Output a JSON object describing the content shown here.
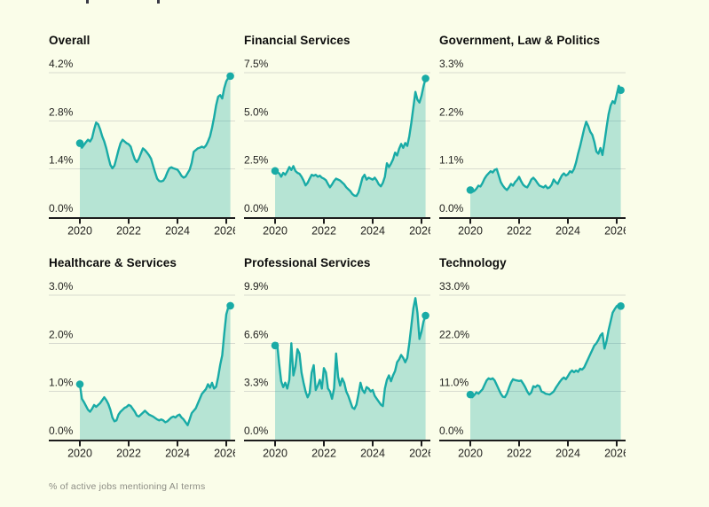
{
  "page": {
    "footer_note": "% of active jobs mentioning AI terms"
  },
  "colors": {
    "background": "#fafde9",
    "line": "#19aba6",
    "fill": "rgba(25,171,166,0.30)",
    "grid": "#d8dbd0",
    "axis": "#1c1c1c",
    "title_text": "#0d0d0d",
    "label_text": "#222220",
    "footer_text": "#8d8d85"
  },
  "chart_data": [
    {
      "type": "area",
      "title": "Overall",
      "unit": "%",
      "y_ticks": [
        "4.2%",
        "2.8%",
        "1.4%",
        "0.0%"
      ],
      "ymax": 4.2,
      "ymin": 0,
      "x_ticks": [
        "2020",
        "2022",
        "2024",
        "2026"
      ],
      "x_start": "2020-01",
      "x_end": "2026-03",
      "frequency": "monthly",
      "start_dot": true,
      "end_dot": true,
      "values": [
        2.15,
        2.02,
        2.1,
        2.18,
        2.25,
        2.2,
        2.3,
        2.55,
        2.75,
        2.7,
        2.55,
        2.35,
        2.2,
        2.0,
        1.75,
        1.52,
        1.42,
        1.5,
        1.72,
        1.95,
        2.15,
        2.25,
        2.2,
        2.15,
        2.12,
        2.05,
        1.85,
        1.68,
        1.6,
        1.7,
        1.85,
        2.0,
        1.95,
        1.88,
        1.8,
        1.7,
        1.5,
        1.3,
        1.12,
        1.05,
        1.04,
        1.06,
        1.15,
        1.3,
        1.42,
        1.45,
        1.42,
        1.4,
        1.38,
        1.3,
        1.2,
        1.15,
        1.18,
        1.28,
        1.38,
        1.58,
        1.9,
        1.95,
        2.0,
        2.02,
        2.05,
        2.02,
        2.08,
        2.2,
        2.35,
        2.6,
        2.9,
        3.25,
        3.5,
        3.55,
        3.45,
        3.75,
        3.95,
        4.05,
        4.1
      ]
    },
    {
      "type": "area",
      "title": "Financial Services",
      "unit": "%",
      "y_ticks": [
        "7.5%",
        "5.0%",
        "2.5%",
        "0.0%"
      ],
      "ymax": 7.5,
      "ymin": 0,
      "x_ticks": [
        "2020",
        "2022",
        "2024",
        "2026"
      ],
      "x_start": "2020-01",
      "x_end": "2026-03",
      "frequency": "monthly",
      "start_dot": true,
      "end_dot": true,
      "values": [
        2.4,
        2.32,
        2.28,
        2.1,
        2.3,
        2.2,
        2.38,
        2.6,
        2.45,
        2.65,
        2.4,
        2.3,
        2.25,
        2.1,
        1.9,
        1.65,
        1.78,
        2.0,
        2.2,
        2.15,
        2.2,
        2.1,
        2.15,
        2.05,
        2.0,
        1.92,
        1.72,
        1.55,
        1.7,
        1.88,
        2.0,
        1.95,
        1.9,
        1.8,
        1.7,
        1.55,
        1.45,
        1.35,
        1.2,
        1.12,
        1.1,
        1.28,
        1.65,
        2.05,
        2.2,
        1.95,
        2.05,
        2.0,
        1.95,
        2.05,
        1.9,
        1.7,
        1.6,
        1.78,
        2.1,
        2.8,
        2.6,
        2.78,
        3.0,
        3.35,
        3.2,
        3.55,
        3.8,
        3.6,
        3.85,
        3.7,
        4.2,
        4.9,
        5.7,
        6.5,
        6.1,
        5.95,
        6.3,
        6.8,
        7.2
      ]
    },
    {
      "type": "area",
      "title": "Government, Law & Politics",
      "unit": "%",
      "y_ticks": [
        "3.3%",
        "2.2%",
        "1.1%",
        "0.0%"
      ],
      "ymax": 3.3,
      "ymin": 0,
      "x_ticks": [
        "2020",
        "2022",
        "2024",
        "2026"
      ],
      "x_start": "2020-01",
      "x_end": "2026-03",
      "frequency": "monthly",
      "start_dot": true,
      "end_dot": true,
      "values": [
        0.62,
        0.58,
        0.6,
        0.65,
        0.72,
        0.7,
        0.78,
        0.88,
        0.95,
        1.0,
        1.05,
        1.02,
        1.08,
        1.1,
        0.95,
        0.8,
        0.72,
        0.66,
        0.62,
        0.68,
        0.76,
        0.72,
        0.8,
        0.85,
        0.92,
        0.82,
        0.74,
        0.7,
        0.68,
        0.76,
        0.86,
        0.9,
        0.85,
        0.78,
        0.72,
        0.7,
        0.68,
        0.72,
        0.66,
        0.68,
        0.74,
        0.86,
        0.8,
        0.76,
        0.86,
        0.95,
        1.0,
        0.95,
        0.98,
        1.05,
        1.02,
        1.1,
        1.25,
        1.45,
        1.62,
        1.82,
        2.02,
        2.18,
        2.08,
        1.95,
        1.88,
        1.72,
        1.5,
        1.45,
        1.58,
        1.42,
        1.72,
        2.05,
        2.35,
        2.55,
        2.65,
        2.6,
        2.8,
        3.0,
        2.9
      ]
    },
    {
      "type": "area",
      "title": "Healthcare & Services",
      "unit": "%",
      "y_ticks": [
        "3.0%",
        "2.0%",
        "1.0%",
        "0.0%"
      ],
      "ymax": 3.0,
      "ymin": 0,
      "x_ticks": [
        "2020",
        "2022",
        "2024",
        "2026"
      ],
      "x_start": "2020-01",
      "x_end": "2026-03",
      "frequency": "monthly",
      "start_dot": true,
      "end_dot": true,
      "values": [
        1.15,
        0.85,
        0.78,
        0.7,
        0.62,
        0.58,
        0.64,
        0.72,
        0.68,
        0.72,
        0.76,
        0.82,
        0.88,
        0.82,
        0.74,
        0.62,
        0.46,
        0.38,
        0.4,
        0.52,
        0.58,
        0.62,
        0.66,
        0.68,
        0.72,
        0.7,
        0.64,
        0.58,
        0.5,
        0.48,
        0.52,
        0.56,
        0.6,
        0.56,
        0.52,
        0.5,
        0.48,
        0.45,
        0.42,
        0.4,
        0.42,
        0.4,
        0.36,
        0.38,
        0.42,
        0.46,
        0.48,
        0.46,
        0.5,
        0.52,
        0.46,
        0.42,
        0.36,
        0.3,
        0.42,
        0.55,
        0.6,
        0.65,
        0.75,
        0.85,
        0.95,
        1.0,
        1.05,
        1.15,
        1.08,
        1.18,
        1.06,
        1.1,
        1.3,
        1.55,
        1.75,
        2.2,
        2.6,
        2.75,
        2.78
      ]
    },
    {
      "type": "area",
      "title": "Professional Services",
      "unit": "%",
      "y_ticks": [
        "9.9%",
        "6.6%",
        "3.3%",
        "0.0%"
      ],
      "ymax": 9.9,
      "ymin": 0,
      "x_ticks": [
        "2020",
        "2022",
        "2024",
        "2026"
      ],
      "x_start": "2020-01",
      "x_end": "2026-03",
      "frequency": "monthly",
      "start_dot": true,
      "end_dot": true,
      "values": [
        6.45,
        6.6,
        5.2,
        4.0,
        3.6,
        3.9,
        3.5,
        4.1,
        6.6,
        4.4,
        5.0,
        6.2,
        5.9,
        4.6,
        3.9,
        3.3,
        2.9,
        3.2,
        4.6,
        5.1,
        3.4,
        3.7,
        4.1,
        3.5,
        4.9,
        4.6,
        3.5,
        3.3,
        2.8,
        3.5,
        5.9,
        4.3,
        3.7,
        4.2,
        3.9,
        3.3,
        3.0,
        2.6,
        2.2,
        2.1,
        2.4,
        3.1,
        3.9,
        3.4,
        3.2,
        3.6,
        3.5,
        3.3,
        3.4,
        3.0,
        2.8,
        2.6,
        2.4,
        2.3,
        3.5,
        4.1,
        4.4,
        4.0,
        4.4,
        4.7,
        5.3,
        5.5,
        5.8,
        5.6,
        5.3,
        5.6,
        6.6,
        7.8,
        9.0,
        9.7,
        8.7,
        6.9,
        7.4,
        8.1,
        8.5
      ]
    },
    {
      "type": "area",
      "title": "Technology",
      "unit": "%",
      "y_ticks": [
        "33.0%",
        "22.0%",
        "11.0%",
        "0.0%"
      ],
      "ymax": 33.0,
      "ymin": 0,
      "x_ticks": [
        "2020",
        "2022",
        "2024",
        "2026"
      ],
      "x_start": "2020-01",
      "x_end": "2026-03",
      "frequency": "monthly",
      "start_dot": true,
      "end_dot": true,
      "values": [
        10.3,
        9.7,
        10.2,
        10.8,
        10.5,
        11.0,
        11.5,
        12.5,
        13.5,
        14.0,
        13.8,
        14.0,
        13.5,
        12.5,
        11.5,
        10.5,
        9.8,
        9.7,
        10.5,
        11.8,
        13.0,
        13.8,
        13.6,
        13.5,
        13.4,
        13.5,
        12.8,
        12.0,
        11.0,
        10.3,
        10.8,
        12.2,
        12.0,
        12.4,
        12.2,
        11.0,
        10.8,
        10.5,
        10.4,
        10.3,
        10.6,
        11.0,
        11.8,
        12.5,
        13.2,
        13.8,
        14.2,
        13.8,
        14.5,
        15.3,
        15.8,
        15.4,
        15.8,
        15.5,
        16.2,
        16.0,
        16.5,
        17.5,
        18.5,
        19.5,
        20.5,
        21.5,
        22.0,
        22.8,
        23.8,
        24.3,
        20.8,
        22.5,
        25.0,
        27.0,
        29.0,
        29.8,
        30.5,
        30.8,
        30.5
      ]
    }
  ]
}
